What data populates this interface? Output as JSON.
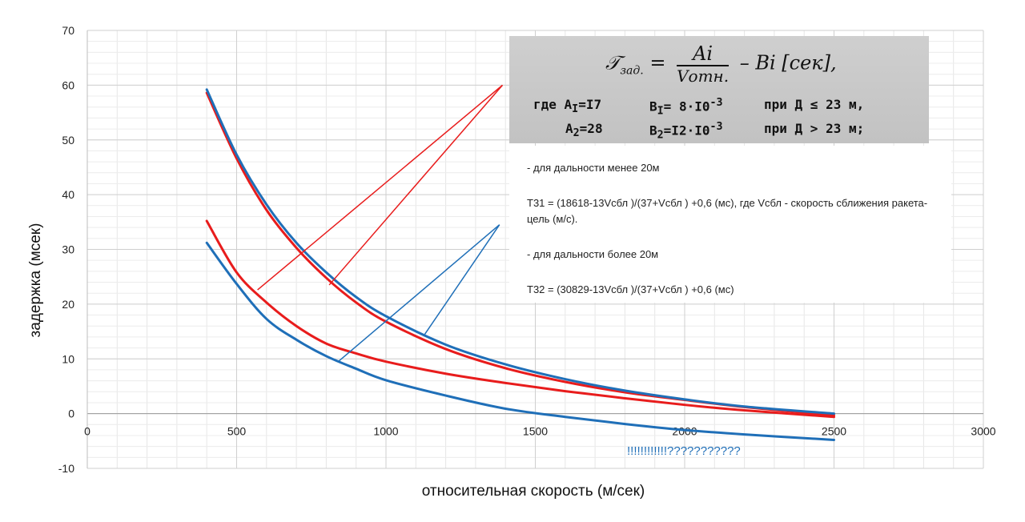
{
  "chart_data": {
    "type": "line",
    "xlabel": "относительная скорость (м/сек)",
    "ylabel": "задержка (мсек)",
    "xlim": [
      0,
      3000
    ],
    "ylim": [
      -10,
      70
    ],
    "xticks": [
      0,
      500,
      1000,
      1500,
      2000,
      2500,
      3000
    ],
    "yticks": [
      -10,
      0,
      10,
      20,
      30,
      40,
      50,
      60,
      70
    ],
    "grid": true,
    "series": [
      {
        "color": "#e81c1c",
        "x": [
          400,
          500,
          600,
          700,
          800,
          900,
          1000,
          1200,
          1400,
          1600,
          1800,
          2000,
          2200,
          2500
        ],
        "y": [
          58.6,
          46.6,
          37.2,
          30.3,
          24.8,
          20.3,
          16.8,
          11.8,
          8.3,
          5.8,
          3.9,
          2.5,
          1.2,
          -0.3
        ]
      },
      {
        "color": "#1f6fb8",
        "x": [
          400,
          500,
          600,
          700,
          800,
          900,
          1000,
          1200,
          1400,
          1600,
          1800,
          2000,
          2200,
          2500
        ],
        "y": [
          59.2,
          47.3,
          38.2,
          31.2,
          25.8,
          21.3,
          17.8,
          12.6,
          9.0,
          6.3,
          4.2,
          2.6,
          1.3,
          0.0
        ]
      },
      {
        "color": "#e81c1c",
        "x": [
          400,
          500,
          600,
          700,
          800,
          900,
          1000,
          1200,
          1400,
          1600,
          1800,
          2000,
          2200,
          2500
        ],
        "y": [
          35.2,
          25.8,
          20.3,
          16.0,
          12.8,
          11.0,
          9.5,
          7.3,
          5.6,
          4.1,
          2.8,
          1.6,
          0.6,
          -0.6
        ]
      },
      {
        "color": "#1f6fb8",
        "x": [
          400,
          500,
          600,
          700,
          800,
          900,
          1000,
          1200,
          1400,
          1600,
          1800,
          2000,
          2200,
          2500
        ],
        "y": [
          31.2,
          23.7,
          17.3,
          13.5,
          10.5,
          8.2,
          6.1,
          3.3,
          0.9,
          -0.6,
          -1.9,
          -3.0,
          -3.8,
          -4.8
        ]
      }
    ],
    "pointer_lines": [
      {
        "color": "#e81c1c",
        "from": [
          570,
          22.6
        ],
        "to": [
          1390,
          60
        ]
      },
      {
        "color": "#e81c1c",
        "from": [
          810,
          23.5
        ],
        "to": [
          1390,
          60
        ]
      },
      {
        "color": "#1f6fb8",
        "from": [
          840,
          9.5
        ],
        "to": [
          1380,
          34.5
        ]
      },
      {
        "color": "#1f6fb8",
        "from": [
          1130,
          14.5
        ],
        "to": [
          1380,
          34.5
        ]
      }
    ]
  },
  "scan": {
    "formula_lhs": "𝒯",
    "formula_lhs_sub": "зад.",
    "formula_eq": "=",
    "formula_num": "Ai",
    "formula_den": "Vотн.",
    "formula_rest": "– Bi    [сек],",
    "row1": "где A",
    "row1_sub": "I",
    "row1_rest": "=I7",
    "row1_b": "B",
    "row1_b_sub": "I",
    "row1_b_rest": "= 8·I0",
    "row1_b_exp": "-3",
    "row1_cond": "при   Д ≤ 23 м,",
    "row2": "A",
    "row2_sub": "2",
    "row2_rest": "=28",
    "row2_b": "B",
    "row2_b_sub": "2",
    "row2_b_rest": "=I2·I0",
    "row2_b_exp": "-3",
    "row2_cond": "при   Д > 23 м;"
  },
  "textbox": {
    "line1": "- для дальности менее 20м",
    "line2": "T31 = (18618-13Vсбл )/(37+Vсбл ) +0,6  (мс),  где  Vсбл  - скорость сближения ракета-цель (м/с).",
    "line3": "- для дальности более 20м",
    "line4": "T32  =  (30829-13Vсбл )/(37+Vсбл ) +0,6  (мс)"
  },
  "annotation": "!!!!!!!!!!!!???????????"
}
